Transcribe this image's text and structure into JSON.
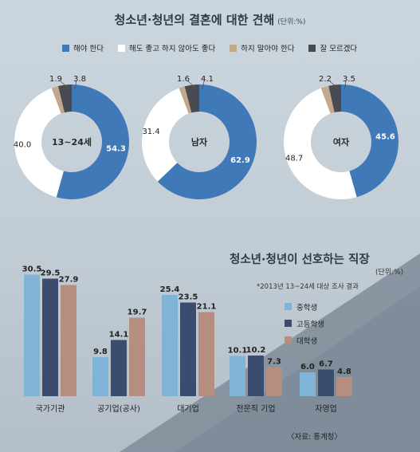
{
  "colors": {
    "must": "#3f79b7",
    "either": "#ffffff",
    "shouldnt": "#c3a98c",
    "dontknow": "#4a4a52",
    "middle": "#7fb3d8",
    "high": "#3b4d6e",
    "college": "#b58e80"
  },
  "header": {
    "title": "청소년·청년의 결혼에 대한 견해",
    "unit": "(단위:%)"
  },
  "legend1": [
    {
      "label": "해야 한다",
      "color": "#3f79b7"
    },
    {
      "label": "해도 좋고 하지 않아도 좋다",
      "color": "#ffffff"
    },
    {
      "label": "하지 말아야 한다",
      "color": "#c3a98c"
    },
    {
      "label": "잘 모르겠다",
      "color": "#4a4a52"
    }
  ],
  "section2": {
    "title": "청소년·청년이 선호하는 직장",
    "unit": "(단위:%)",
    "note": "*2013년 13~24세 대상 조사 결과",
    "legend": [
      {
        "label": "중학생",
        "color": "#7fb3d8"
      },
      {
        "label": "고등학생",
        "color": "#3b4d6e"
      },
      {
        "label": "대학생",
        "color": "#b58e80"
      }
    ]
  },
  "source": "〈자료: 통계청〉",
  "chart_data": [
    {
      "type": "pie",
      "title": "청소년·청년의 결혼에 대한 견해",
      "unit": "(단위:%)",
      "categories": [
        "해야 한다",
        "해도 좋고 하지 않아도 좋다",
        "하지 말아야 한다",
        "잘 모르겠다"
      ],
      "donuts": [
        {
          "name": "13~24세",
          "values": [
            54.3,
            40.0,
            1.9,
            3.8
          ],
          "labels": [
            "54.3",
            "40.0",
            "1.9",
            "3.8"
          ]
        },
        {
          "name": "남자",
          "values": [
            62.9,
            31.4,
            1.6,
            4.1
          ],
          "labels": [
            "62.9",
            "31.4",
            "1.6",
            "4.1"
          ]
        },
        {
          "name": "여자",
          "values": [
            45.6,
            48.7,
            2.2,
            3.5
          ],
          "labels": [
            "45.6",
            "48.7",
            "2.2",
            "3.5"
          ]
        }
      ]
    },
    {
      "type": "bar",
      "title": "청소년·청년이 선호하는 직장",
      "unit": "(단위:%)",
      "categories": [
        "국가기관",
        "공기업(공사)",
        "대기업",
        "전문직 기업",
        "자영업"
      ],
      "series": [
        {
          "name": "중학생",
          "values": [
            30.5,
            9.8,
            25.4,
            10.1,
            6.0
          ],
          "labels": [
            "30.5",
            "9.8",
            "25.4",
            "10.1",
            "6.0"
          ]
        },
        {
          "name": "고등학생",
          "values": [
            29.5,
            14.1,
            23.5,
            10.2,
            6.7
          ],
          "labels": [
            "29.5",
            "14.1",
            "23.5",
            "10.2",
            "6.7"
          ]
        },
        {
          "name": "대학생",
          "values": [
            27.9,
            19.7,
            21.1,
            7.3,
            4.8
          ],
          "labels": [
            "27.9",
            "19.7",
            "21.1",
            "7.3",
            "4.8"
          ]
        }
      ],
      "ylim": [
        0,
        35
      ],
      "grid": false
    }
  ]
}
